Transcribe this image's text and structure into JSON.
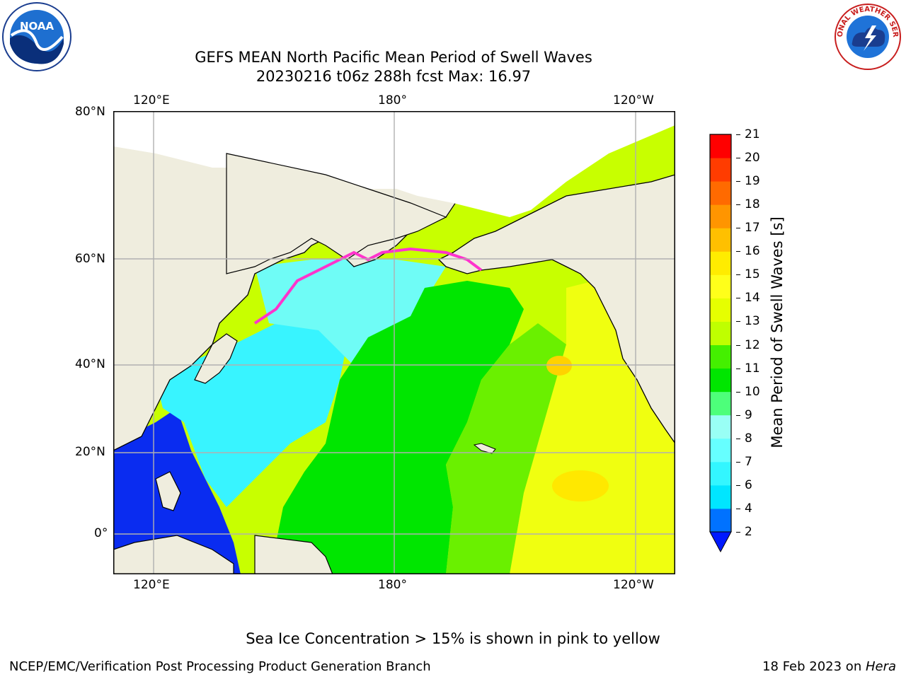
{
  "title_line1": "GEFS MEAN North Pacific Mean Period of Swell Waves",
  "title_line2": "20230216 t06z 288h fcst   Max: 16.97",
  "map": {
    "lon_labels_top": [
      "120°E",
      "180°",
      "120°W"
    ],
    "lon_labels_bottom": [
      "120°E",
      "180°",
      "120°W"
    ],
    "lat_labels": [
      "80°N",
      "60°N",
      "40°N",
      "20°N",
      "0°"
    ],
    "land_color": "#efedde",
    "gridline_color": "#b0b0b0",
    "ice_note": "Sea Ice Concentration > 15% is shown in pink to yellow"
  },
  "colorbar": {
    "label": "Mean Period of Swell Waves [s]",
    "tick_labels": [
      "2",
      "4",
      "6",
      "7",
      "8",
      "9",
      "10",
      "11",
      "12",
      "13",
      "14",
      "15",
      "16",
      "17",
      "18",
      "19",
      "20",
      "21"
    ],
    "colors": [
      "#0072ff",
      "#00e6ff",
      "#33f6ff",
      "#66ffff",
      "#99fff5",
      "#4dff7a",
      "#00e600",
      "#44f000",
      "#bfff00",
      "#e6ff00",
      "#ffff1a",
      "#ffec00",
      "#ffc000",
      "#ff9500",
      "#ff6a00",
      "#ff3c00",
      "#ff0000"
    ],
    "under_color": "#0019ff"
  },
  "logos": {
    "noaa_text": "NOAA",
    "nws_text": "NATIONAL WEATHER SERVICE"
  },
  "footer": {
    "left": "NCEP/EMC/Verification Post Processing Product Generation Branch",
    "right_prefix": "18 Feb 2023 on ",
    "right_host": "Hera"
  }
}
